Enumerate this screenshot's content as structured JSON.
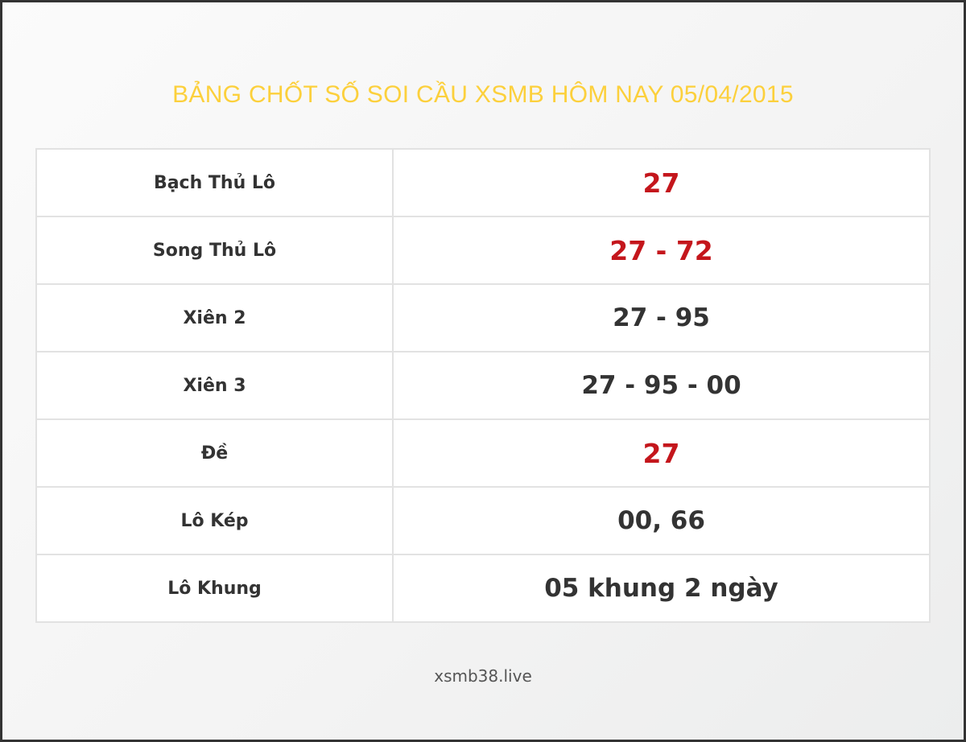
{
  "title": "BẢNG CHỐT SỐ SOI CẦU XSMB HÔM NAY 05/04/2015",
  "rows": [
    {
      "label": "Bạch Thủ Lô",
      "value": "27",
      "highlight": true
    },
    {
      "label": "Song Thủ Lô",
      "value": "27 - 72",
      "highlight": true
    },
    {
      "label": "Xiên 2",
      "value": "27 - 95",
      "highlight": false
    },
    {
      "label": "Xiên 3",
      "value": "27 - 95 - 00",
      "highlight": false
    },
    {
      "label": "Đề",
      "value": "27",
      "highlight": true
    },
    {
      "label": "Lô Kép",
      "value": "00, 66",
      "highlight": false
    },
    {
      "label": "Lô Khung",
      "value": "05 khung 2 ngày",
      "highlight": false
    }
  ],
  "footer": "xsmb38.live",
  "colors": {
    "title": "#fcd03c",
    "highlight": "#c4161c",
    "text": "#333333"
  }
}
